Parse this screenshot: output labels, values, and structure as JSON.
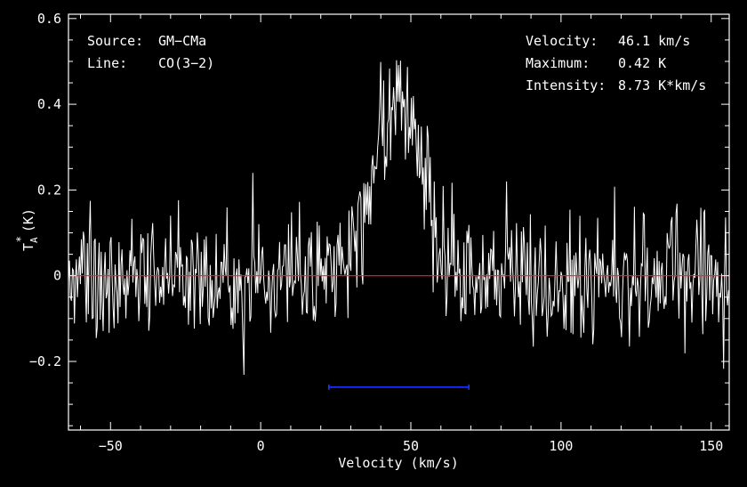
{
  "chart_data": {
    "type": "line",
    "title": "",
    "xlabel": "Velocity (km/s)",
    "ylabel": "T",
    "ylabel_sub": "A",
    "ylabel_sup": "*",
    "ylabel_unit": "(K)",
    "xlim": [
      -64,
      156
    ],
    "ylim": [
      -0.36,
      0.61
    ],
    "xticks": [
      -50,
      0,
      50,
      100,
      150
    ],
    "xtick_labels": [
      "−50",
      "0",
      "50",
      "100",
      "150"
    ],
    "yticks": [
      -0.2,
      0,
      0.2,
      0.4,
      0.6
    ],
    "ytick_labels": [
      "−0.2",
      "0",
      "0.2",
      "0.4",
      "0.6"
    ],
    "grid": false,
    "baseline": {
      "y": 0,
      "color": "#ff2020"
    },
    "integration_window": {
      "x": [
        22.7,
        69.3
      ],
      "y": -0.26,
      "color": "#2030ff"
    },
    "spectrum": {
      "color": "#ffffff",
      "channel_width_kms": 0.33,
      "noise_rms_K": 0.075,
      "line_center_kms": 46.1,
      "line_peak_K": 0.42,
      "line_fwhm_kms": 19.5
    },
    "info_left": [
      {
        "label": "Source:",
        "value": "GM−CMa"
      },
      {
        "label": "Line:",
        "value": "CO(3−2)"
      }
    ],
    "info_right": [
      {
        "label": "Velocity:",
        "value": "46.1 km/s"
      },
      {
        "label": "Maximum:",
        "value": "0.42 K"
      },
      {
        "label": "Intensity:",
        "value": "8.73 K*km/s"
      }
    ]
  }
}
